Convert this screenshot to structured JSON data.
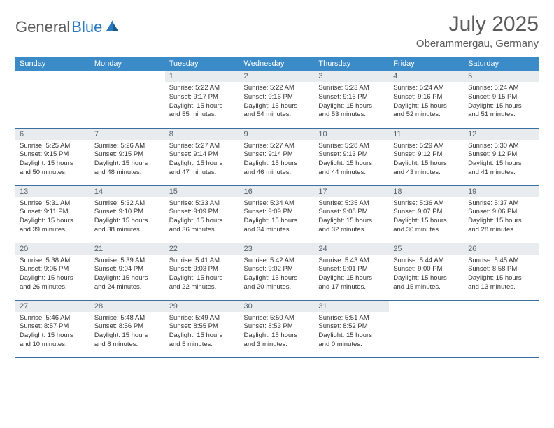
{
  "logo": {
    "text1": "General",
    "text2": "Blue"
  },
  "title": "July 2025",
  "location": "Oberammergau, Germany",
  "colors": {
    "header_bg": "#3b8bc9",
    "header_text": "#ffffff",
    "daynum_bg": "#e8ecef",
    "daynum_text": "#56636e",
    "row_border": "#3b6fa0",
    "body_text": "#333333",
    "title_text": "#5a5a5a",
    "logo_blue": "#2b7bbf"
  },
  "weekdays": [
    "Sunday",
    "Monday",
    "Tuesday",
    "Wednesday",
    "Thursday",
    "Friday",
    "Saturday"
  ],
  "weeks": [
    [
      null,
      null,
      {
        "n": "1",
        "sr": "5:22 AM",
        "ss": "9:17 PM",
        "dl": "15 hours and 55 minutes."
      },
      {
        "n": "2",
        "sr": "5:22 AM",
        "ss": "9:16 PM",
        "dl": "15 hours and 54 minutes."
      },
      {
        "n": "3",
        "sr": "5:23 AM",
        "ss": "9:16 PM",
        "dl": "15 hours and 53 minutes."
      },
      {
        "n": "4",
        "sr": "5:24 AM",
        "ss": "9:16 PM",
        "dl": "15 hours and 52 minutes."
      },
      {
        "n": "5",
        "sr": "5:24 AM",
        "ss": "9:15 PM",
        "dl": "15 hours and 51 minutes."
      }
    ],
    [
      {
        "n": "6",
        "sr": "5:25 AM",
        "ss": "9:15 PM",
        "dl": "15 hours and 50 minutes."
      },
      {
        "n": "7",
        "sr": "5:26 AM",
        "ss": "9:15 PM",
        "dl": "15 hours and 48 minutes."
      },
      {
        "n": "8",
        "sr": "5:27 AM",
        "ss": "9:14 PM",
        "dl": "15 hours and 47 minutes."
      },
      {
        "n": "9",
        "sr": "5:27 AM",
        "ss": "9:14 PM",
        "dl": "15 hours and 46 minutes."
      },
      {
        "n": "10",
        "sr": "5:28 AM",
        "ss": "9:13 PM",
        "dl": "15 hours and 44 minutes."
      },
      {
        "n": "11",
        "sr": "5:29 AM",
        "ss": "9:12 PM",
        "dl": "15 hours and 43 minutes."
      },
      {
        "n": "12",
        "sr": "5:30 AM",
        "ss": "9:12 PM",
        "dl": "15 hours and 41 minutes."
      }
    ],
    [
      {
        "n": "13",
        "sr": "5:31 AM",
        "ss": "9:11 PM",
        "dl": "15 hours and 39 minutes."
      },
      {
        "n": "14",
        "sr": "5:32 AM",
        "ss": "9:10 PM",
        "dl": "15 hours and 38 minutes."
      },
      {
        "n": "15",
        "sr": "5:33 AM",
        "ss": "9:09 PM",
        "dl": "15 hours and 36 minutes."
      },
      {
        "n": "16",
        "sr": "5:34 AM",
        "ss": "9:09 PM",
        "dl": "15 hours and 34 minutes."
      },
      {
        "n": "17",
        "sr": "5:35 AM",
        "ss": "9:08 PM",
        "dl": "15 hours and 32 minutes."
      },
      {
        "n": "18",
        "sr": "5:36 AM",
        "ss": "9:07 PM",
        "dl": "15 hours and 30 minutes."
      },
      {
        "n": "19",
        "sr": "5:37 AM",
        "ss": "9:06 PM",
        "dl": "15 hours and 28 minutes."
      }
    ],
    [
      {
        "n": "20",
        "sr": "5:38 AM",
        "ss": "9:05 PM",
        "dl": "15 hours and 26 minutes."
      },
      {
        "n": "21",
        "sr": "5:39 AM",
        "ss": "9:04 PM",
        "dl": "15 hours and 24 minutes."
      },
      {
        "n": "22",
        "sr": "5:41 AM",
        "ss": "9:03 PM",
        "dl": "15 hours and 22 minutes."
      },
      {
        "n": "23",
        "sr": "5:42 AM",
        "ss": "9:02 PM",
        "dl": "15 hours and 20 minutes."
      },
      {
        "n": "24",
        "sr": "5:43 AM",
        "ss": "9:01 PM",
        "dl": "15 hours and 17 minutes."
      },
      {
        "n": "25",
        "sr": "5:44 AM",
        "ss": "9:00 PM",
        "dl": "15 hours and 15 minutes."
      },
      {
        "n": "26",
        "sr": "5:45 AM",
        "ss": "8:58 PM",
        "dl": "15 hours and 13 minutes."
      }
    ],
    [
      {
        "n": "27",
        "sr": "5:46 AM",
        "ss": "8:57 PM",
        "dl": "15 hours and 10 minutes."
      },
      {
        "n": "28",
        "sr": "5:48 AM",
        "ss": "8:56 PM",
        "dl": "15 hours and 8 minutes."
      },
      {
        "n": "29",
        "sr": "5:49 AM",
        "ss": "8:55 PM",
        "dl": "15 hours and 5 minutes."
      },
      {
        "n": "30",
        "sr": "5:50 AM",
        "ss": "8:53 PM",
        "dl": "15 hours and 3 minutes."
      },
      {
        "n": "31",
        "sr": "5:51 AM",
        "ss": "8:52 PM",
        "dl": "15 hours and 0 minutes."
      },
      null,
      null
    ]
  ],
  "labels": {
    "sunrise": "Sunrise:",
    "sunset": "Sunset:",
    "daylight": "Daylight:"
  }
}
